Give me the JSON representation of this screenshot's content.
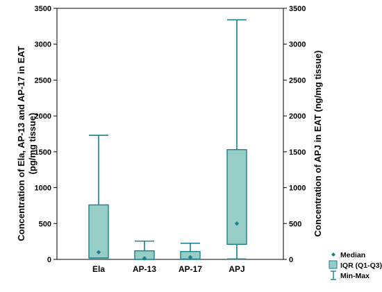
{
  "chart_data": {
    "type": "box",
    "categories": [
      "Ela",
      "AP-13",
      "AP-17",
      "APJ"
    ],
    "left_axis": {
      "label": "Concentration of Ela, AP-13 and AP-17 in EAT (pg/mg tissue)",
      "label_lines": [
        "Concentration of Ela, AP-13 and AP-17 in EAT",
        "(pg/mg tissue)"
      ],
      "ylim": [
        0,
        3500
      ],
      "ticks": [
        0,
        500,
        1000,
        1500,
        2000,
        2500,
        3000,
        3500
      ]
    },
    "right_axis": {
      "label": "Concentration of APJ in EAT (ng/mg tissue)",
      "ylim": [
        0,
        3500
      ],
      "ticks": [
        0,
        500,
        1000,
        1500,
        2000,
        2500,
        3000,
        3500
      ]
    },
    "boxes": [
      {
        "category": "Ela",
        "axis": "left",
        "min": 20,
        "q1": 20,
        "median": 100,
        "q3": 760,
        "max": 1730
      },
      {
        "category": "AP-13",
        "axis": "left",
        "min": 0,
        "q1": 0,
        "median": 15,
        "q3": 120,
        "max": 255
      },
      {
        "category": "AP-17",
        "axis": "left",
        "min": 0,
        "q1": 5,
        "median": 30,
        "q3": 110,
        "max": 225
      },
      {
        "category": "APJ",
        "axis": "right",
        "min": 5,
        "q1": 210,
        "median": 500,
        "q3": 1530,
        "max": 3340
      }
    ],
    "legend": {
      "position": "bottom-right",
      "entries": [
        {
          "key": "median",
          "label": "Median"
        },
        {
          "key": "iqr",
          "label": "IQR (Q1-Q3)"
        },
        {
          "key": "minmax",
          "label": "Min-Max"
        }
      ]
    },
    "colors": {
      "stroke": "#1a7f8a",
      "fill": "#96cdc6",
      "marker": "#1a7f8a"
    },
    "grid": false
  }
}
